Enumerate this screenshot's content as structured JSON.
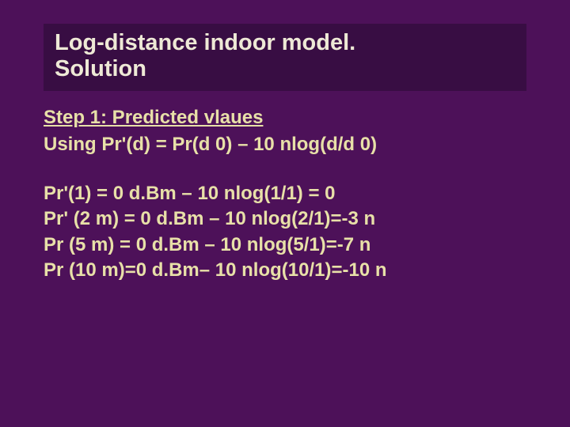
{
  "slide": {
    "background_color": "#4d1159",
    "title_box_bg": "#380d43",
    "text_color": "#e8e0a8",
    "title_color": "#eee9d6",
    "title_line1": "Log-distance indoor model.",
    "title_line2": "Solution",
    "step_heading": "Step 1: Predicted vlaues",
    "formula_line": "Using Pr'(d) = Pr(d 0) – 10 nlog(d/d 0)",
    "calc_lines": [
      "Pr'(1) = 0 d.Bm – 10 nlog(1/1)  = 0",
      "Pr' (2 m) = 0 d.Bm – 10 nlog(2/1)=-3 n",
      "Pr (5 m) = 0 d.Bm – 10 nlog(5/1)=-7 n",
      "Pr (10 m)=0 d.Bm– 10 nlog(10/1)=-10 n"
    ],
    "title_fontsize": 29,
    "body_fontsize": 24
  }
}
